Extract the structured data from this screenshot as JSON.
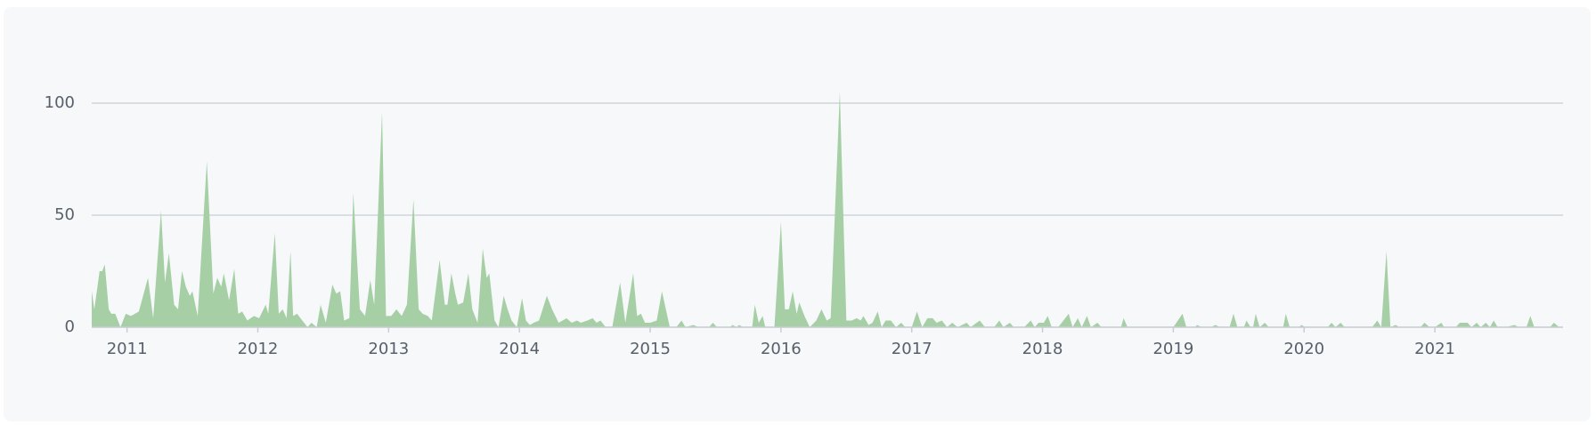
{
  "chart_data": {
    "type": "area",
    "color": "#a6cfa6",
    "grid": true,
    "xlim": [
      2010.73,
      2021.98
    ],
    "xticks": [
      2011,
      2012,
      2013,
      2014,
      2015,
      2016,
      2017,
      2018,
      2019,
      2020,
      2021
    ],
    "ylim": [
      0,
      110
    ],
    "yticks": [
      0,
      50,
      100
    ],
    "x": [
      2010.73,
      2010.75,
      2010.79,
      2010.81,
      2010.83,
      2010.86,
      2010.88,
      2010.91,
      2010.95,
      2010.99,
      2011.03,
      2011.09,
      2011.16,
      2011.2,
      2011.26,
      2011.29,
      2011.32,
      2011.36,
      2011.39,
      2011.42,
      2011.45,
      2011.48,
      2011.5,
      2011.54,
      2011.61,
      2011.66,
      2011.69,
      2011.72,
      2011.74,
      2011.78,
      2011.82,
      2011.85,
      2011.88,
      2011.92,
      2011.97,
      2012.01,
      2012.06,
      2012.08,
      2012.13,
      2012.16,
      2012.19,
      2012.22,
      2012.25,
      2012.27,
      2012.3,
      2012.34,
      2012.38,
      2012.41,
      2012.45,
      2012.48,
      2012.52,
      2012.57,
      2012.6,
      2012.63,
      2012.66,
      2012.7,
      2012.73,
      2012.78,
      2012.82,
      2012.86,
      2012.89,
      2012.95,
      2012.98,
      2013.02,
      2013.06,
      2013.1,
      2013.14,
      2013.19,
      2013.23,
      2013.26,
      2013.3,
      2013.33,
      2013.39,
      2013.43,
      2013.45,
      2013.48,
      2013.51,
      2013.53,
      2013.57,
      2013.61,
      2013.64,
      2013.68,
      2013.72,
      2013.75,
      2013.77,
      2013.81,
      2013.84,
      2013.88,
      2013.91,
      2013.94,
      2013.98,
      2014.02,
      2014.05,
      2014.08,
      2014.11,
      2014.15,
      2014.21,
      2014.25,
      2014.3,
      2014.36,
      2014.4,
      2014.44,
      2014.47,
      2014.52,
      2014.56,
      2014.59,
      2014.62,
      2014.66,
      2014.71,
      2014.77,
      2014.81,
      2014.87,
      2014.9,
      2014.93,
      2014.96,
      2015.0,
      2015.05,
      2015.09,
      2015.12,
      2015.15,
      2015.2,
      2015.24,
      2015.27,
      2015.33,
      2015.37,
      2015.45,
      2015.48,
      2015.51,
      2015.61,
      2015.63,
      2015.66,
      2015.68,
      2015.71,
      2015.78,
      2015.8,
      2015.83,
      2015.86,
      2015.88,
      2015.95,
      2016.0,
      2016.03,
      2016.06,
      2016.09,
      2016.12,
      2016.14,
      2016.18,
      2016.22,
      2016.27,
      2016.31,
      2016.35,
      2016.38,
      2016.45,
      2016.5,
      2016.54,
      2016.58,
      2016.61,
      2016.63,
      2016.67,
      2016.7,
      2016.74,
      2016.77,
      2016.8,
      2016.84,
      2016.88,
      2016.92,
      2016.95,
      2017.0,
      2017.04,
      2017.08,
      2017.12,
      2017.16,
      2017.19,
      2017.23,
      2017.27,
      2017.31,
      2017.35,
      2017.42,
      2017.45,
      2017.52,
      2017.56,
      2017.63,
      2017.67,
      2017.7,
      2017.75,
      2017.78,
      2017.86,
      2017.91,
      2017.94,
      2017.97,
      2018.01,
      2018.04,
      2018.07,
      2018.12,
      2018.2,
      2018.23,
      2018.27,
      2018.3,
      2018.34,
      2018.37,
      2018.42,
      2018.45,
      2018.6,
      2018.62,
      2018.65,
      2019.0,
      2019.07,
      2019.1,
      2019.17,
      2019.18,
      2019.22,
      2019.29,
      2019.32,
      2019.36,
      2019.43,
      2019.46,
      2019.49,
      2019.54,
      2019.56,
      2019.59,
      2019.61,
      2019.63,
      2019.66,
      2019.7,
      2019.73,
      2019.84,
      2019.86,
      2019.89,
      2019.96,
      2019.98,
      2020.01,
      2020.18,
      2020.21,
      2020.24,
      2020.28,
      2020.31,
      2020.52,
      2020.56,
      2020.59,
      2020.63,
      2020.66,
      2020.7,
      2020.73,
      2020.89,
      2020.92,
      2020.96,
      2021.0,
      2021.05,
      2021.07,
      2021.16,
      2021.19,
      2021.25,
      2021.28,
      2021.32,
      2021.35,
      2021.39,
      2021.42,
      2021.45,
      2021.48,
      2021.54,
      2021.61,
      2021.64,
      2021.7,
      2021.73,
      2021.76,
      2021.88,
      2021.91,
      2021.95,
      2021.98
    ],
    "values": [
      16,
      8,
      25,
      25,
      28,
      8,
      6,
      6,
      0,
      6,
      5,
      7,
      22,
      4,
      52,
      20,
      33,
      10,
      8,
      25,
      18,
      14,
      16,
      5,
      74,
      15,
      22,
      18,
      24,
      12,
      26,
      6,
      7,
      3,
      5,
      4,
      10,
      6,
      42,
      6,
      8,
      4,
      34,
      5,
      6,
      3,
      0,
      2,
      0,
      10,
      2,
      19,
      15,
      16,
      3,
      4,
      60,
      8,
      5,
      21,
      10,
      96,
      5,
      5,
      8,
      5,
      10,
      57,
      8,
      6,
      5,
      3,
      30,
      10,
      10,
      24,
      15,
      10,
      11,
      24,
      8,
      2,
      35,
      22,
      24,
      3,
      0,
      14,
      8,
      3,
      0,
      13,
      3,
      1,
      2,
      3,
      14,
      8,
      2,
      4,
      2,
      3,
      2,
      3,
      4,
      2,
      3,
      0,
      0,
      20,
      2,
      24,
      5,
      6,
      2,
      2,
      3,
      16,
      8,
      0,
      0,
      3,
      0,
      1,
      0,
      0,
      2,
      0,
      0,
      1,
      0,
      1,
      0,
      0,
      10,
      2,
      5,
      0,
      0,
      47,
      8,
      8,
      16,
      6,
      11,
      5,
      0,
      3,
      8,
      3,
      4,
      105,
      3,
      3,
      4,
      3,
      5,
      1,
      2,
      7,
      0,
      3,
      3,
      0,
      2,
      0,
      0,
      7,
      0,
      4,
      4,
      2,
      3,
      0,
      2,
      0,
      2,
      0,
      3,
      0,
      0,
      3,
      0,
      2,
      0,
      0,
      3,
      0,
      2,
      2,
      5,
      0,
      0,
      6,
      0,
      4,
      0,
      5,
      0,
      2,
      0,
      0,
      4,
      0,
      0,
      6,
      0,
      0,
      1,
      0,
      0,
      1,
      0,
      0,
      6,
      0,
      0,
      3,
      0,
      0,
      6,
      0,
      2,
      0,
      0,
      6,
      0,
      0,
      1,
      0,
      0,
      2,
      0,
      2,
      0,
      0,
      3,
      0,
      34,
      0,
      1,
      0,
      0,
      2,
      0,
      0,
      2,
      0,
      0,
      2,
      2,
      0,
      2,
      0,
      2,
      0,
      3,
      0,
      0,
      1,
      0,
      0,
      5,
      0,
      0,
      2,
      0,
      0
    ]
  }
}
